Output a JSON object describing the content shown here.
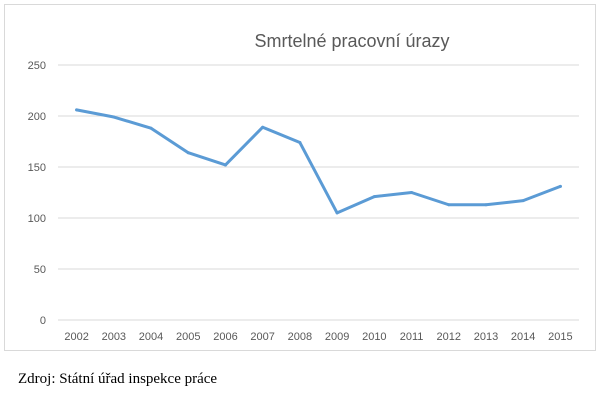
{
  "chart_data": {
    "type": "line",
    "title": "Smrtelné pracovní úrazy",
    "xlabel": "",
    "ylabel": "",
    "categories": [
      "2002",
      "2003",
      "2004",
      "2005",
      "2006",
      "2007",
      "2008",
      "2009",
      "2010",
      "2011",
      "2012",
      "2013",
      "2014",
      "2015"
    ],
    "series": [
      {
        "values": [
          206,
          199,
          188,
          164,
          152,
          189,
          174,
          105,
          121,
          125,
          113,
          113,
          117,
          131
        ]
      }
    ],
    "ylim": [
      0,
      250
    ],
    "yticks": [
      0,
      50,
      100,
      150,
      200,
      250
    ],
    "grid": true,
    "legend": "none",
    "line_color": "#5b9bd5",
    "grid_color": "#d9d9d9"
  },
  "source_text": "Zdroj: Státní úřad inspekce práce"
}
